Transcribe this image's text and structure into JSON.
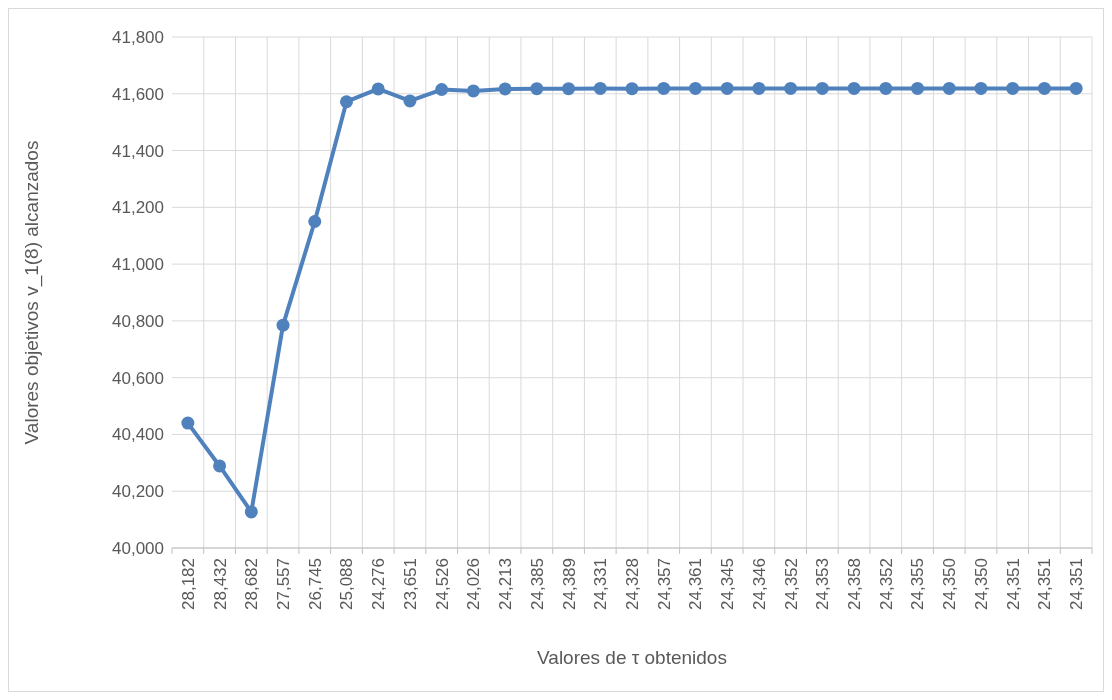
{
  "chart_data": {
    "type": "line",
    "xlabel": "Valores de τ obtenidos",
    "ylabel": "Valores objetivos v_1(8) alcanzados",
    "categories": [
      "28,182",
      "28,432",
      "28,682",
      "27,557",
      "26,745",
      "25,088",
      "24,276",
      "23,651",
      "24,526",
      "24,026",
      "24,213",
      "24,385",
      "24,389",
      "24,331",
      "24,328",
      "24,357",
      "24,361",
      "24,345",
      "24,346",
      "24,352",
      "24,353",
      "24,358",
      "24,352",
      "24,355",
      "24,350",
      "24,350",
      "24,351",
      "24,351",
      "24,351"
    ],
    "series": [
      {
        "color": "#4f81bd",
        "values": [
          40440,
          40289,
          40127,
          40785,
          41150,
          41572,
          41617,
          41575,
          41615,
          41610,
          41617,
          41618,
          41618,
          41619,
          41618,
          41619,
          41619,
          41619,
          41619,
          41619,
          41619,
          41619,
          41619,
          41619,
          41619,
          41619,
          41619,
          41619,
          41619
        ]
      }
    ],
    "ylim": [
      40000,
      41800
    ],
    "yticks": [
      {
        "value": 40000,
        "label": "40,000"
      },
      {
        "value": 40200,
        "label": "40,200"
      },
      {
        "value": 40400,
        "label": "40,400"
      },
      {
        "value": 40600,
        "label": "40,600"
      },
      {
        "value": 40800,
        "label": "40,800"
      },
      {
        "value": 41000,
        "label": "41,000"
      },
      {
        "value": 41200,
        "label": "41,200"
      },
      {
        "value": 41400,
        "label": "41,400"
      },
      {
        "value": 41600,
        "label": "41,600"
      },
      {
        "value": 41800,
        "label": "41,800"
      }
    ],
    "grid": true,
    "marker": "circle",
    "line_style": "solid"
  }
}
